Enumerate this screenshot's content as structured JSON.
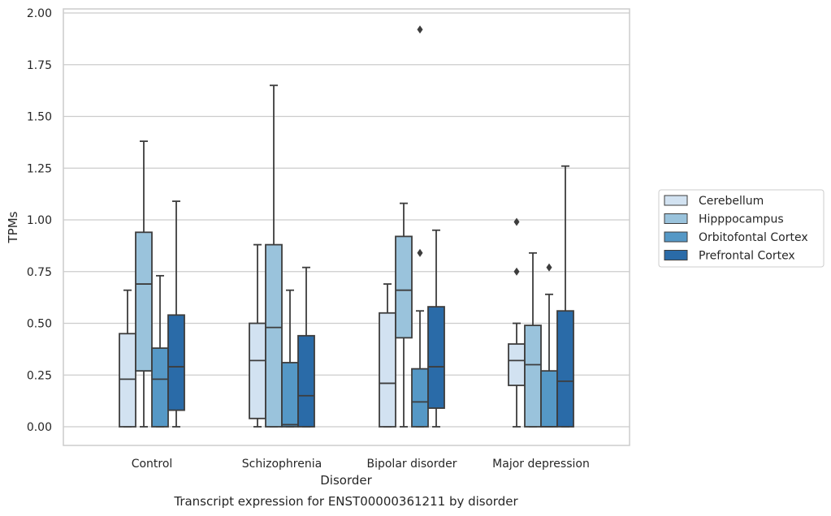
{
  "chart_data": {
    "type": "box",
    "title": "",
    "caption": "Transcript expression for ENST00000361211 by disorder",
    "xlabel": "Disorder",
    "ylabel": "TPMs",
    "categories": [
      "Control",
      "Schizophrenia",
      "Bipolar disorder",
      "Major depression"
    ],
    "ylim": [
      -0.09,
      2.01
    ],
    "yticks": [
      "0.00",
      "0.25",
      "0.50",
      "0.75",
      "1.00",
      "1.25",
      "1.50",
      "1.75",
      "2.00"
    ],
    "grid": "horizontal",
    "legend_position": "right",
    "series": [
      {
        "name": "Cerebellum",
        "color": "#d2e2f1",
        "boxes": [
          {
            "whislo": 0.0,
            "q1": 0.0,
            "med": 0.23,
            "q3": 0.45,
            "whishi": 0.66,
            "fliers": []
          },
          {
            "whislo": 0.0,
            "q1": 0.04,
            "med": 0.32,
            "q3": 0.5,
            "whishi": 0.88,
            "fliers": []
          },
          {
            "whislo": 0.0,
            "q1": 0.0,
            "med": 0.21,
            "q3": 0.55,
            "whishi": 0.69,
            "fliers": []
          },
          {
            "whislo": 0.0,
            "q1": 0.2,
            "med": 0.32,
            "q3": 0.4,
            "whishi": 0.5,
            "fliers": [
              0.75,
              0.99
            ]
          }
        ]
      },
      {
        "name": "Hipppocampus",
        "color": "#9ac3dc",
        "boxes": [
          {
            "whislo": 0.0,
            "q1": 0.27,
            "med": 0.69,
            "q3": 0.94,
            "whishi": 1.38,
            "fliers": []
          },
          {
            "whislo": 0.0,
            "q1": 0.0,
            "med": 0.48,
            "q3": 0.88,
            "whishi": 1.65,
            "fliers": []
          },
          {
            "whislo": 0.0,
            "q1": 0.43,
            "med": 0.66,
            "q3": 0.92,
            "whishi": 1.08,
            "fliers": []
          },
          {
            "whislo": 0.0,
            "q1": 0.0,
            "med": 0.3,
            "q3": 0.49,
            "whishi": 0.84,
            "fliers": []
          }
        ]
      },
      {
        "name": "Orbitofontal Cortex",
        "color": "#5598c6",
        "boxes": [
          {
            "whislo": 0.0,
            "q1": 0.0,
            "med": 0.23,
            "q3": 0.38,
            "whishi": 0.73,
            "fliers": []
          },
          {
            "whislo": 0.0,
            "q1": 0.0,
            "med": 0.01,
            "q3": 0.31,
            "whishi": 0.66,
            "fliers": []
          },
          {
            "whislo": 0.0,
            "q1": 0.0,
            "med": 0.12,
            "q3": 0.28,
            "whishi": 0.56,
            "fliers": [
              0.84,
              1.92
            ]
          },
          {
            "whislo": 0.0,
            "q1": 0.0,
            "med": 0.0,
            "q3": 0.27,
            "whishi": 0.64,
            "fliers": [
              0.77
            ]
          }
        ]
      },
      {
        "name": "Prefrontal Cortex",
        "color": "#2a6ba8",
        "boxes": [
          {
            "whislo": 0.0,
            "q1": 0.08,
            "med": 0.29,
            "q3": 0.54,
            "whishi": 1.09,
            "fliers": []
          },
          {
            "whislo": 0.0,
            "q1": 0.0,
            "med": 0.15,
            "q3": 0.44,
            "whishi": 0.77,
            "fliers": []
          },
          {
            "whislo": 0.0,
            "q1": 0.09,
            "med": 0.29,
            "q3": 0.58,
            "whishi": 0.95,
            "fliers": []
          },
          {
            "whislo": 0.0,
            "q1": 0.0,
            "med": 0.22,
            "q3": 0.56,
            "whishi": 1.26,
            "fliers": []
          }
        ]
      }
    ]
  }
}
